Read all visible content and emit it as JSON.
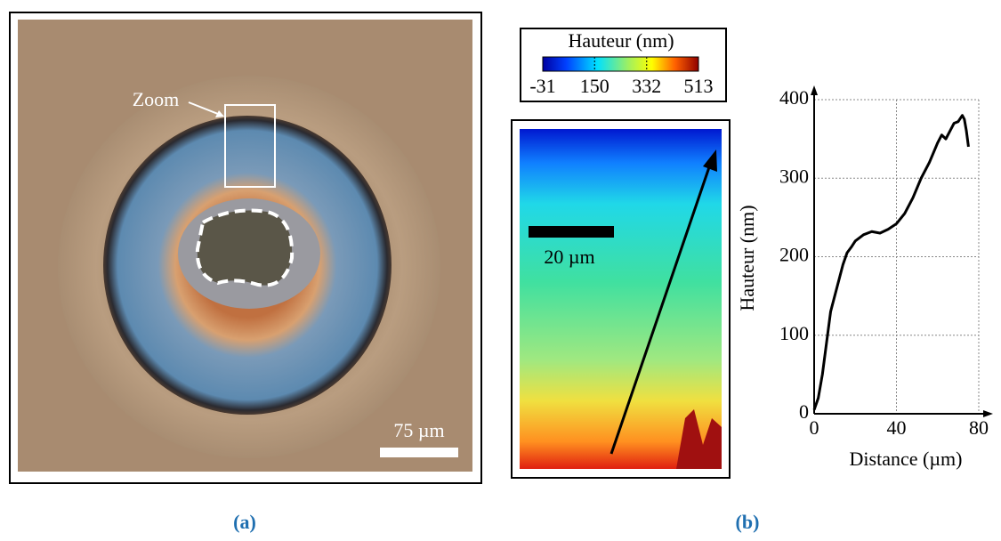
{
  "panel_a": {
    "zoom_label": "Zoom",
    "scale_bar": "75 µm",
    "caption": "(a)"
  },
  "panel_b": {
    "caption": "(b)",
    "scale_bar": "20 µm",
    "colorbar": {
      "title": "Hauteur (nm)",
      "lim": [
        -31,
        513
      ],
      "ticks": [
        -31,
        150,
        332,
        513
      ]
    }
  },
  "chart_data": {
    "type": "line",
    "xlabel": "Distance (µm)",
    "ylabel": "Hauteur (nm)",
    "color": "#000000",
    "x": [
      0,
      2,
      4,
      6,
      8,
      10,
      12,
      14,
      16,
      18,
      20,
      24,
      28,
      32,
      36,
      40,
      44,
      48,
      52,
      56,
      60,
      62,
      64,
      66,
      68,
      70,
      72,
      73,
      74,
      75
    ],
    "values": [
      5,
      20,
      50,
      90,
      130,
      150,
      170,
      190,
      205,
      212,
      220,
      228,
      232,
      230,
      235,
      242,
      255,
      275,
      300,
      320,
      345,
      355,
      350,
      360,
      370,
      372,
      380,
      375,
      360,
      340
    ],
    "xlim": [
      0,
      80
    ],
    "ylim": [
      0,
      400
    ],
    "xticks": [
      0,
      40,
      80
    ],
    "yticks": [
      0,
      100,
      200,
      300,
      400
    ],
    "grid": true
  }
}
